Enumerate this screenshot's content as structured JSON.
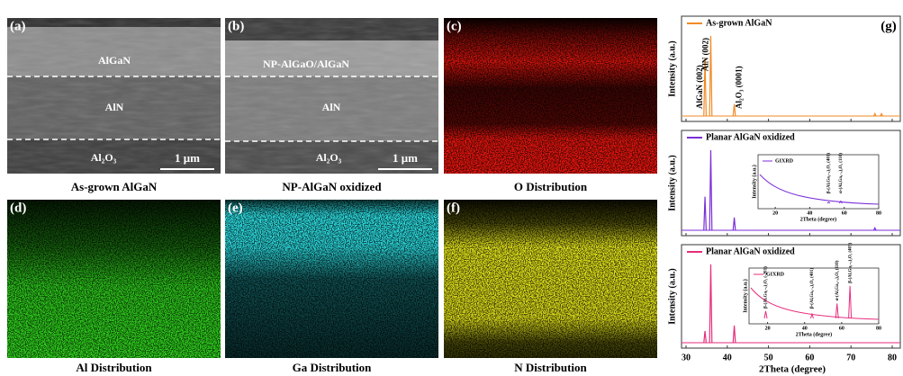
{
  "panels": [
    {
      "label": "(a)",
      "caption": "As-grown AlGaN",
      "layers": [
        "AlGaN",
        "AlN",
        "Al₂O₃"
      ],
      "scale_bar": "1 μm"
    },
    {
      "label": "(b)",
      "caption": "NP-AlGaN oxidized",
      "layers": [
        "NP-AlGaO/AlGaN",
        "AlN",
        "Al₂O₃"
      ],
      "scale_bar": "1 μm"
    }
  ],
  "maps": [
    {
      "label": "(c)",
      "caption": "O Distribution",
      "color": "#e8140f"
    },
    {
      "label": "(d)",
      "caption": "Al Distribution",
      "color": "#2fd01c"
    },
    {
      "label": "(e)",
      "caption": "Ga Distribution",
      "color": "#2ee6ea"
    },
    {
      "label": "(f)",
      "caption": "N Distribution",
      "color": "#ecec1e"
    }
  ],
  "xrd": {
    "label": "(g)",
    "x_label": "2Theta (degree)",
    "y_label": "Intensity (a.u.)",
    "xlim": [
      30,
      80
    ],
    "xticks": [
      30,
      40,
      50,
      60,
      70,
      80
    ],
    "plots": [
      {
        "title": "As-grown AlGaN",
        "color": "#f28a24",
        "peaks": [
          {
            "x": 34.6,
            "intensity": 72,
            "label": "AlGaN (002)"
          },
          {
            "x": 36.0,
            "intensity": 100,
            "label": "AlN (002)"
          },
          {
            "x": 41.7,
            "intensity": 15,
            "label": "Al₂O₃ (0001)"
          },
          {
            "x": 75.8,
            "intensity": 3
          },
          {
            "x": 77.4,
            "intensity": 3
          }
        ]
      },
      {
        "title": "Planar AlGaN oxidized",
        "color": "#7a2fd8",
        "peaks": [
          {
            "x": 34.6,
            "intensity": 42
          },
          {
            "x": 36.0,
            "intensity": 100
          },
          {
            "x": 41.7,
            "intensity": 16
          },
          {
            "x": 75.8,
            "intensity": 3
          }
        ],
        "inset": {
          "legend": "GIXRD",
          "x_label": "2Theta (degree)",
          "y_label": "Intensity (a.u.)",
          "xlim": [
            10,
            80
          ],
          "xticks": [
            20,
            40,
            60,
            80
          ],
          "peaks": [
            {
              "x": 51,
              "intensity": 8,
              "label": "β-(AlₓGa₁₋ₓ)₂O₃ (401)"
            },
            {
              "x": 58,
              "intensity": 10,
              "label": "α-(AlₓGa₁₋ₓ)₂O₃ (110)"
            }
          ]
        }
      },
      {
        "title": "Planar AlGaN oxidized",
        "color": "#e62e7c",
        "peaks": [
          {
            "x": 34.6,
            "intensity": 15
          },
          {
            "x": 36.0,
            "intensity": 100
          },
          {
            "x": 41.7,
            "intensity": 22
          }
        ],
        "inset": {
          "legend": "GIXRD",
          "x_label": "2Theta (degree)",
          "y_label": "Intensity (a.u.)",
          "xlim": [
            10,
            80
          ],
          "xticks": [
            20,
            40,
            60,
            80
          ],
          "peaks": [
            {
              "x": 19,
              "intensity": 20,
              "label": "β-(AlₓGa₁₋ₓ)₂O₃ (-201)"
            },
            {
              "x": 44,
              "intensity": 14,
              "label": "β-(AlₓGa₁₋ₓ)₂O₃ (401)"
            },
            {
              "x": 57.5,
              "intensity": 35,
              "label": "α-(AlₓGa₁₋ₓ)₂O₃ (110)"
            },
            {
              "x": 64.5,
              "intensity": 70,
              "label": "β-(AlₓGa₁₋ₓ)₂O₃ (403)"
            }
          ]
        }
      }
    ]
  }
}
